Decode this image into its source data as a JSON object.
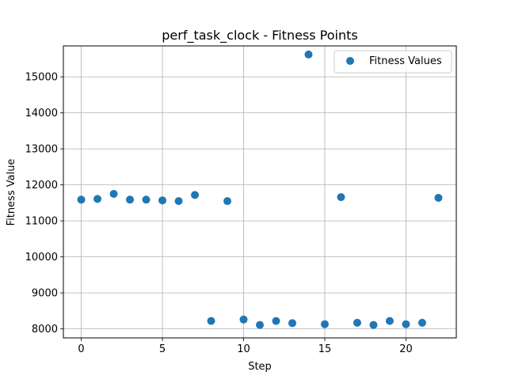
{
  "chart_data": {
    "type": "scatter",
    "title": "perf_task_clock - Fitness Points",
    "xlabel": "Step",
    "ylabel": "Fitness Value",
    "xlim": [
      -1.1,
      23.1
    ],
    "ylim": [
      7750,
      15860
    ],
    "x_ticks": [
      0,
      5,
      10,
      15,
      20
    ],
    "y_ticks": [
      8000,
      9000,
      10000,
      11000,
      12000,
      13000,
      14000,
      15000
    ],
    "x_tick_labels": [
      "0",
      "5",
      "10",
      "15",
      "20"
    ],
    "y_tick_labels": [
      "8000",
      "9000",
      "10000",
      "11000",
      "12000",
      "13000",
      "14000",
      "15000"
    ],
    "grid": true,
    "legend": {
      "position": "top-right",
      "entries": [
        "Fitness Values"
      ]
    },
    "series": [
      {
        "name": "Fitness Values",
        "color": "#1f77b4",
        "x": [
          0,
          1,
          2,
          3,
          4,
          5,
          6,
          7,
          8,
          9,
          10,
          11,
          12,
          13,
          14,
          15,
          16,
          17,
          18,
          19,
          20,
          21,
          22
        ],
        "y": [
          11590,
          11610,
          11750,
          11590,
          11590,
          11570,
          11550,
          11720,
          8220,
          11550,
          8260,
          8110,
          8220,
          8160,
          15620,
          8130,
          11660,
          8170,
          8110,
          8220,
          8130,
          8170,
          11640
        ]
      }
    ]
  }
}
